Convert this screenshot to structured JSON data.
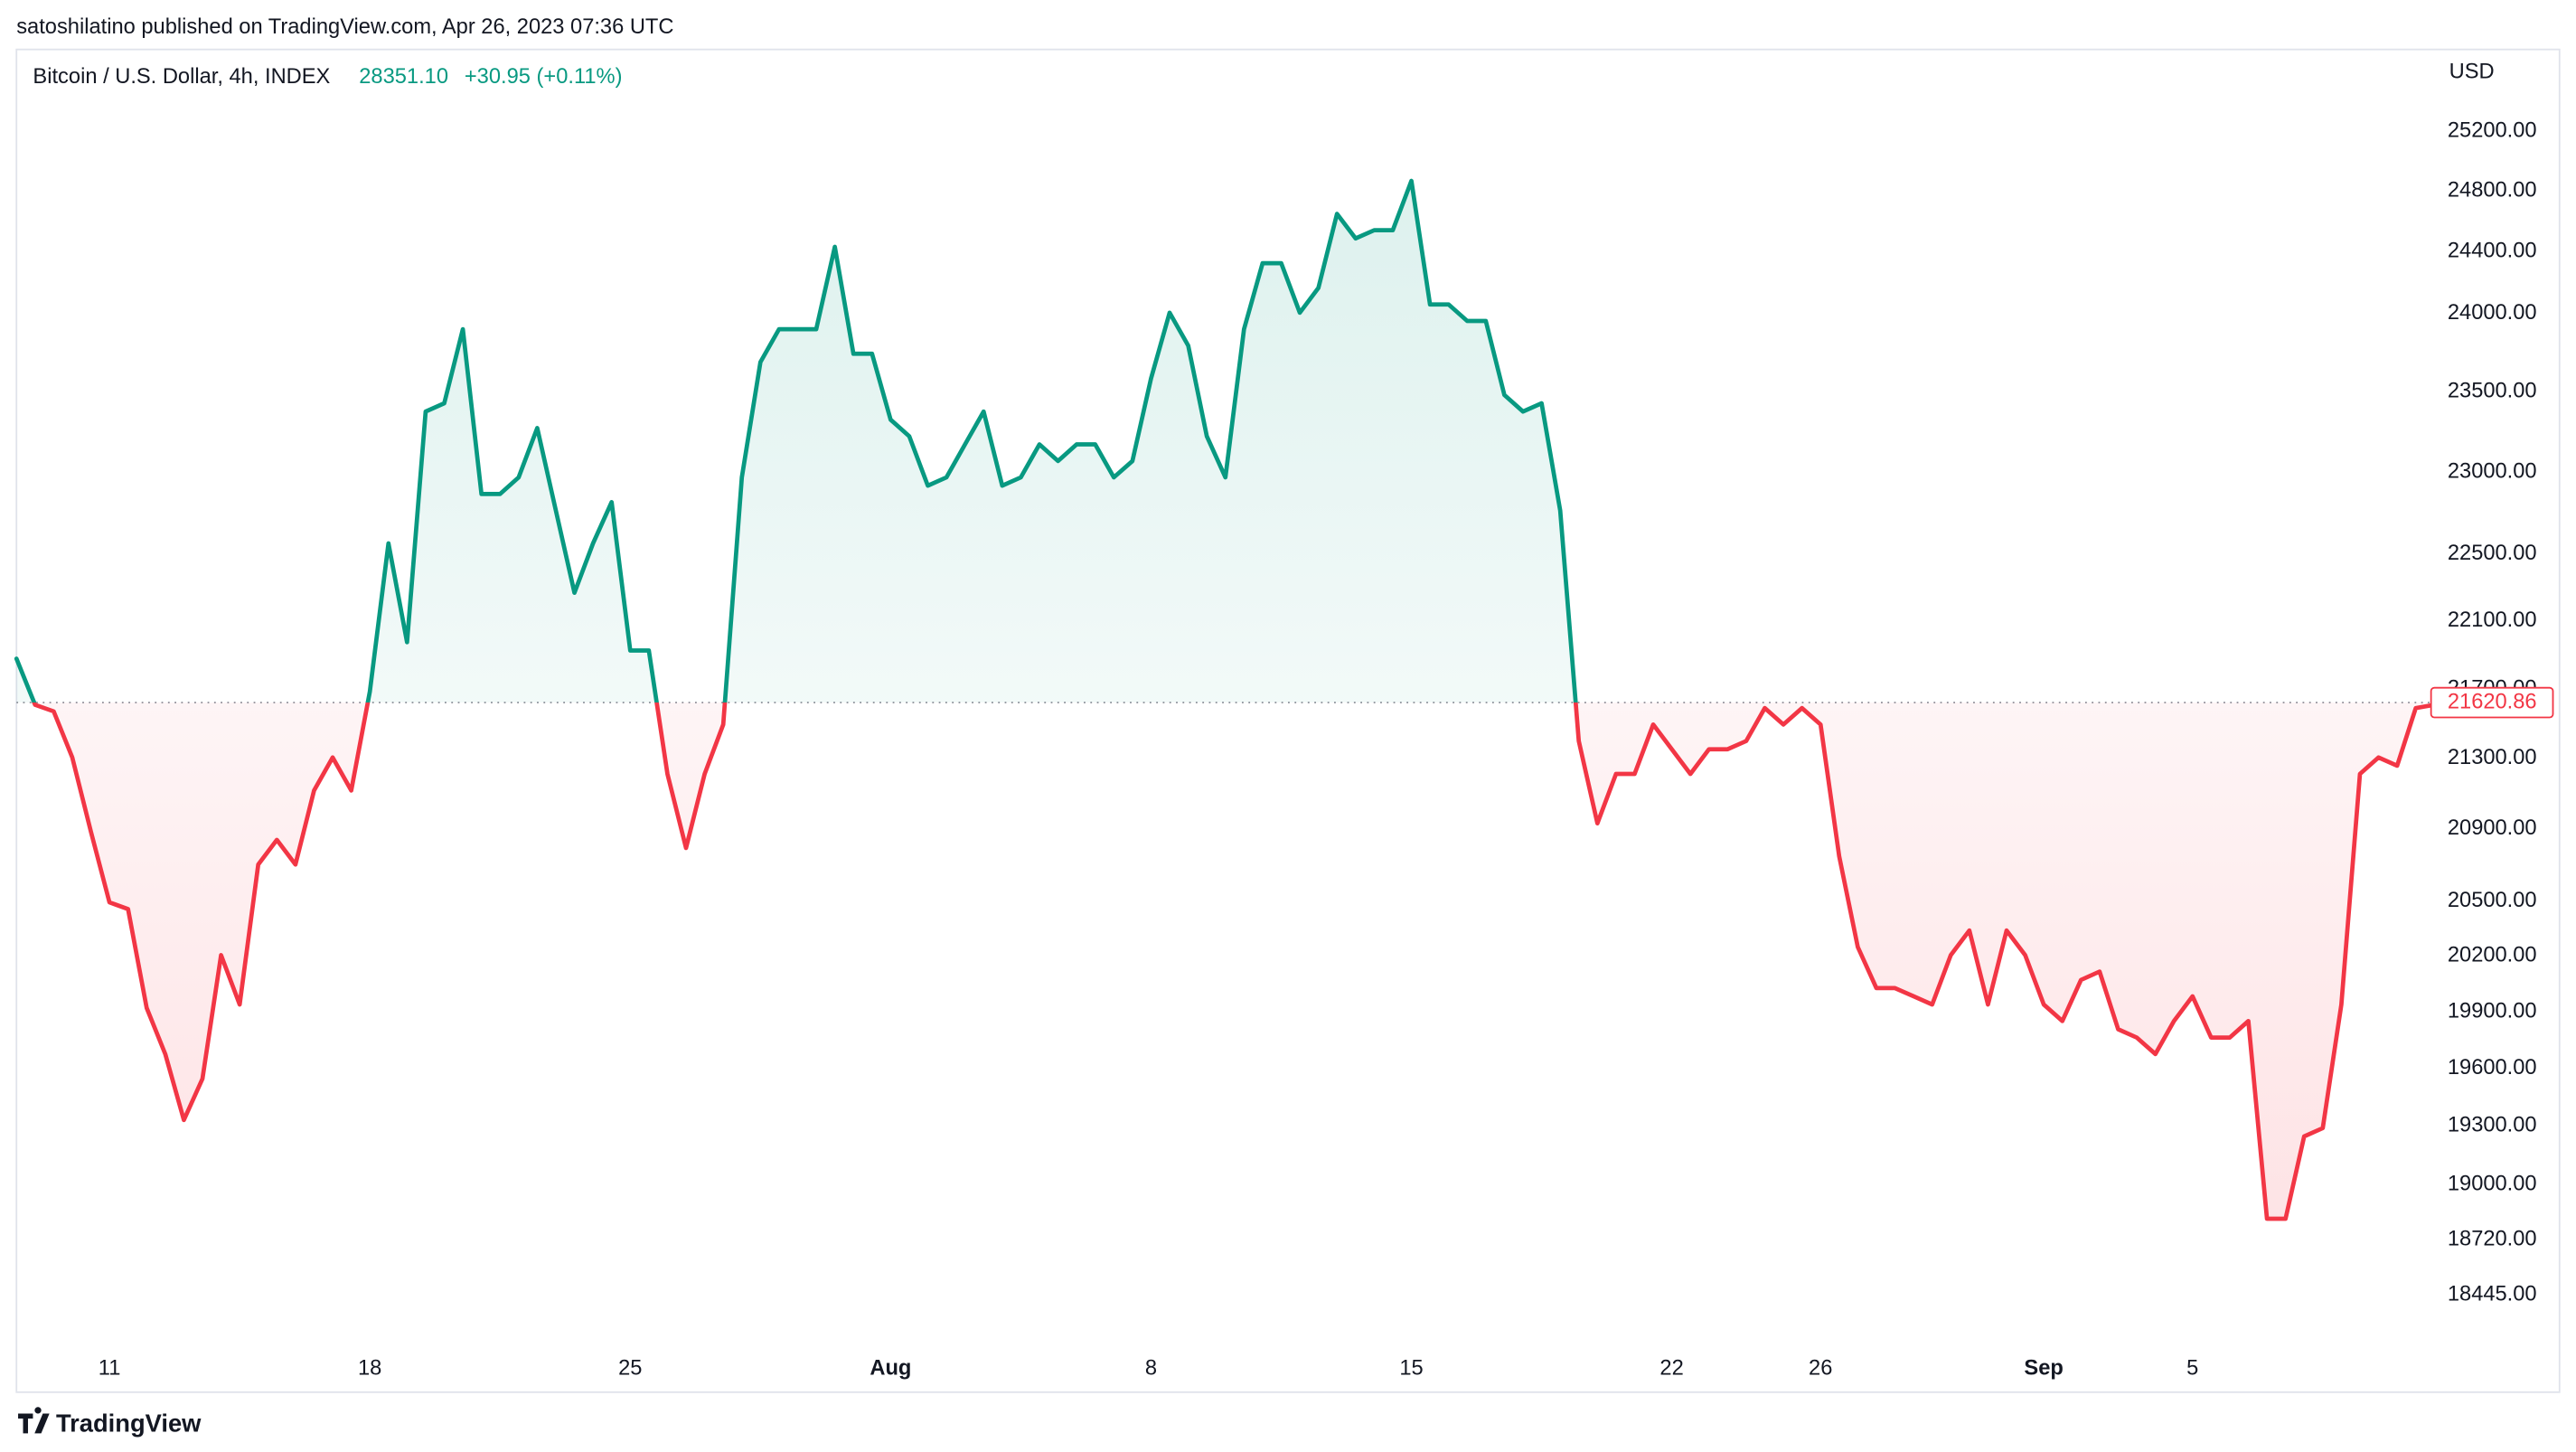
{
  "chart_data": {
    "type": "baseline",
    "publisher_note": "satoshilatino published on TradingView.com, Apr 26, 2023 07:36 UTC",
    "title": "Bitcoin / U.S. Dollar, 4h, INDEX",
    "legend_price": "28351.10",
    "legend_change": "+30.95 (+0.11%)",
    "y_axis_label": "USD",
    "brand": "TradingView",
    "baseline": 21620.86,
    "up_color": "#089981",
    "down_color": "#f23645",
    "log": true,
    "grid": false,
    "values": [
      21877,
      21608,
      21570,
      21305,
      20886,
      20493,
      20456,
      19921,
      19676,
      19331,
      19546,
      20205,
      19939,
      20702,
      20839,
      20702,
      21117,
      21305,
      21117,
      21685,
      22564,
      21974,
      23376,
      23428,
      23898,
      22865,
      22865,
      22967,
      23273,
      22764,
      22267,
      22564,
      22815,
      21925,
      21925,
      21211,
      20794,
      21211,
      21494,
      22967,
      23688,
      23898,
      23898,
      23898,
      24432,
      23741,
      23741,
      23325,
      23222,
      22916,
      22967,
      23171,
      23376,
      22916,
      22967,
      23171,
      23068,
      23171,
      23171,
      22967,
      23068,
      23584,
      24004,
      23793,
      23222,
      22967,
      23898,
      24325,
      24325,
      24004,
      24164,
      24649,
      24487,
      24541,
      24541,
      24868,
      24057,
      24057,
      23951,
      23951,
      23480,
      23376,
      23428,
      22764,
      21399,
      20932,
      21211,
      21211,
      21494,
      21352,
      21211,
      21352,
      21352,
      21399,
      21589,
      21494,
      21589,
      21494,
      20748,
      20249,
      20027,
      20027,
      19983,
      19939,
      20205,
      20339,
      19939,
      20339,
      20205,
      19939,
      19851,
      20071,
      20116,
      19807,
      19763,
      19676,
      19851,
      19983,
      19763,
      19763,
      19851,
      18826,
      18826,
      19246,
      19289,
      19939,
      21211,
      21305,
      21258,
      21589,
      21608
    ],
    "xlim": [
      0,
      130
    ],
    "xticks": [
      {
        "value": 5,
        "label": "11"
      },
      {
        "value": 19,
        "label": "18"
      },
      {
        "value": 33,
        "label": "25"
      },
      {
        "value": 47,
        "label": "Aug"
      },
      {
        "value": 61,
        "label": "8"
      },
      {
        "value": 75,
        "label": "15"
      },
      {
        "value": 89,
        "label": "22"
      },
      {
        "value": 97,
        "label": "26"
      },
      {
        "value": 109,
        "label": "Sep"
      },
      {
        "value": 117,
        "label": "5"
      }
    ],
    "ylim": [
      18210,
      25760
    ],
    "yticks": [
      {
        "value": 25200,
        "label": "25200.00"
      },
      {
        "value": 24800,
        "label": "24800.00"
      },
      {
        "value": 24400,
        "label": "24400.00"
      },
      {
        "value": 24000,
        "label": "24000.00"
      },
      {
        "value": 23500,
        "label": "23500.00"
      },
      {
        "value": 23000,
        "label": "23000.00"
      },
      {
        "value": 22500,
        "label": "22500.00"
      },
      {
        "value": 22100,
        "label": "22100.00"
      },
      {
        "value": 21700,
        "label": "21700.00"
      },
      {
        "value": 21300,
        "label": "21300.00"
      },
      {
        "value": 20900,
        "label": "20900.00"
      },
      {
        "value": 20500,
        "label": "20500.00"
      },
      {
        "value": 20200,
        "label": "20200.00"
      },
      {
        "value": 19900,
        "label": "19900.00"
      },
      {
        "value": 19600,
        "label": "19600.00"
      },
      {
        "value": 19300,
        "label": "19300.00"
      },
      {
        "value": 19000,
        "label": "19000.00"
      },
      {
        "value": 18720,
        "label": "18720.00"
      },
      {
        "value": 18445,
        "label": "18445.00"
      }
    ]
  }
}
